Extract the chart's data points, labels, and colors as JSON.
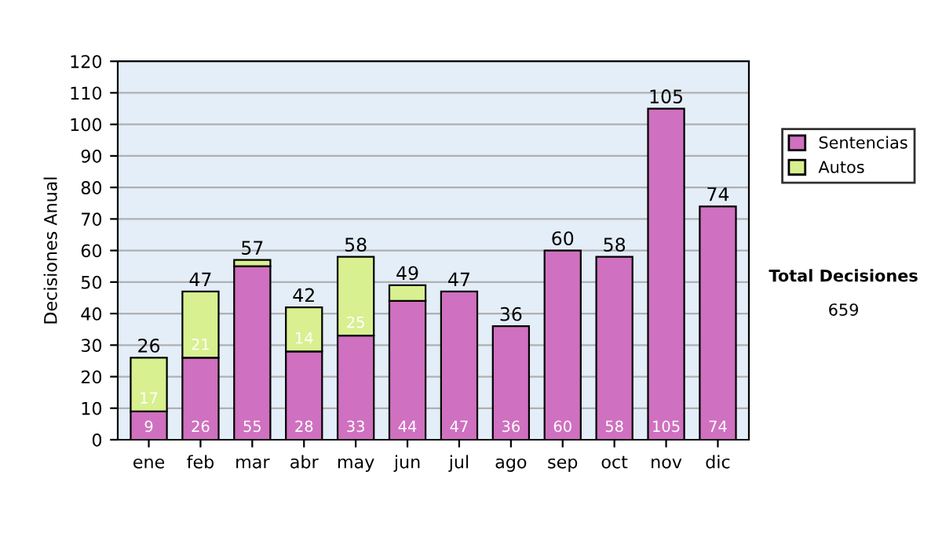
{
  "chart_data": {
    "type": "bar",
    "stacked": true,
    "ylabel": "Decisiones Anual",
    "categories": [
      "ene",
      "feb",
      "mar",
      "abr",
      "may",
      "jun",
      "jul",
      "ago",
      "sep",
      "oct",
      "nov",
      "dic"
    ],
    "series": [
      {
        "name": "Sentencias",
        "color": "#d070c0",
        "values": [
          9,
          26,
          55,
          28,
          33,
          44,
          47,
          36,
          60,
          58,
          105,
          74
        ],
        "value_labels": [
          "9",
          "26",
          "55",
          "28",
          "33",
          "44",
          "47",
          "36",
          "60",
          "58",
          "105",
          "74"
        ]
      },
      {
        "name": "Autos",
        "color": "#d8f090",
        "values": [
          17,
          21,
          2,
          14,
          25,
          5,
          null,
          null,
          null,
          null,
          null,
          null
        ],
        "value_labels": [
          "17",
          "21",
          null,
          "14",
          "25",
          null,
          null,
          null,
          null,
          null,
          null,
          null
        ]
      }
    ],
    "totals": [
      "26",
      "47",
      "57",
      "42",
      "58",
      "49",
      "47",
      "36",
      "60",
      "58",
      "105",
      "74"
    ],
    "ylim": [
      0,
      120
    ],
    "yticks": [
      0,
      10,
      20,
      30,
      40,
      50,
      60,
      70,
      80,
      90,
      100,
      110,
      120
    ],
    "grid": "y",
    "legend": "right",
    "annotations": [
      "Total Decisiones",
      "659"
    ]
  }
}
